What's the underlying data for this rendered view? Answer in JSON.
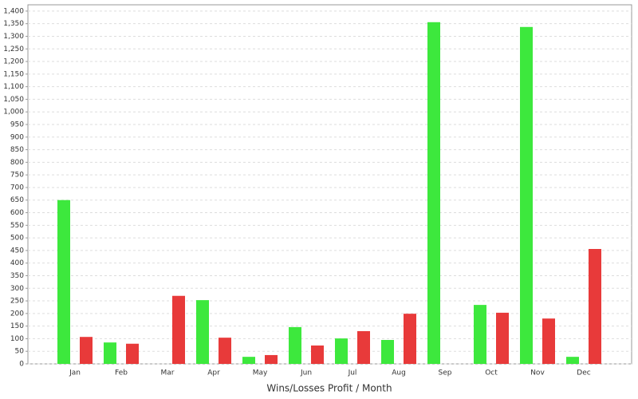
{
  "chart_data": {
    "type": "bar",
    "x_label": "Wins/Losses Profit / Month",
    "categories": [
      "Jan",
      "Feb",
      "Mar",
      "Apr",
      "May",
      "Jun",
      "Jul",
      "Aug",
      "Sep",
      "Oct",
      "Nov",
      "Dec"
    ],
    "series": [
      {
        "color": "#3de83d",
        "values": [
          650,
          85,
          0,
          253,
          28,
          146,
          101,
          95,
          1356,
          234,
          1337,
          28
        ]
      },
      {
        "color": "#e83a3a",
        "values": [
          107,
          80,
          270,
          104,
          35,
          73,
          130,
          199,
          0,
          203,
          180,
          456
        ]
      }
    ],
    "ylim": [
      0,
      1425
    ],
    "yticks": [
      0,
      50,
      100,
      150,
      200,
      250,
      300,
      350,
      400,
      450,
      500,
      550,
      600,
      650,
      700,
      750,
      800,
      850,
      900,
      950,
      {
        "value": 1000,
        "label": "1,000"
      },
      {
        "value": 1050,
        "label": "1,050"
      },
      {
        "value": 1100,
        "label": "1,100"
      },
      {
        "value": 1150,
        "label": "1,150"
      },
      {
        "value": 1200,
        "label": "1,200"
      },
      {
        "value": 1250,
        "label": "1,250"
      },
      {
        "value": 1300,
        "label": "1,300"
      },
      {
        "value": 1350,
        "label": "1,350"
      },
      {
        "value": 1400,
        "label": "1,400"
      }
    ],
    "grid": true
  }
}
